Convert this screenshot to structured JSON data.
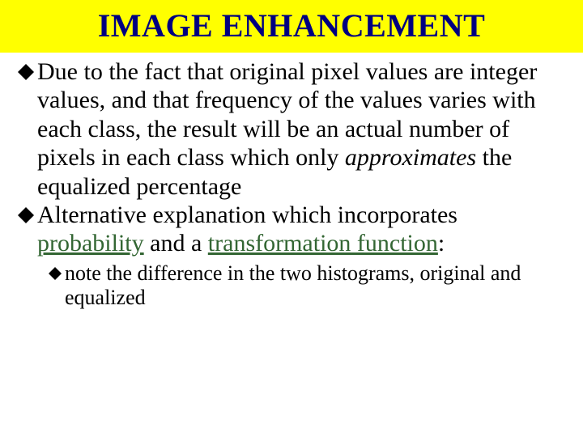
{
  "title": "IMAGE ENHANCEMENT",
  "colors": {
    "title_bg": "#ffff00",
    "title_text": "#000080",
    "body_text": "#000000",
    "link_text": "#336633",
    "bullet_fill": "#000000",
    "background": "#ffffff"
  },
  "typography": {
    "title_fontsize": 40,
    "title_weight": "bold",
    "body_l1_fontsize": 30,
    "body_l2_fontsize": 26,
    "font_family": "Times New Roman"
  },
  "bullets": {
    "shape": "diamond-filled",
    "l1_size": 20,
    "l2_size": 16
  },
  "items": [
    {
      "level": 1,
      "runs": [
        {
          "t": "Due to the fact that original pixel values are integer values, and that frequency of the values varies with each class, the result will be an actual number of pixels in each class which only "
        },
        {
          "t": "approximates",
          "style": "italic"
        },
        {
          "t": " the equalized percentage"
        }
      ]
    },
    {
      "level": 1,
      "runs": [
        {
          "t": "Alternative explanation which incorporates "
        },
        {
          "t": "probability",
          "style": "link"
        },
        {
          "t": " and a "
        },
        {
          "t": "transformation function",
          "style": "link"
        },
        {
          "t": ":"
        }
      ]
    },
    {
      "level": 2,
      "runs": [
        {
          "t": "note the difference in the two histograms, original and equalized"
        }
      ]
    }
  ]
}
